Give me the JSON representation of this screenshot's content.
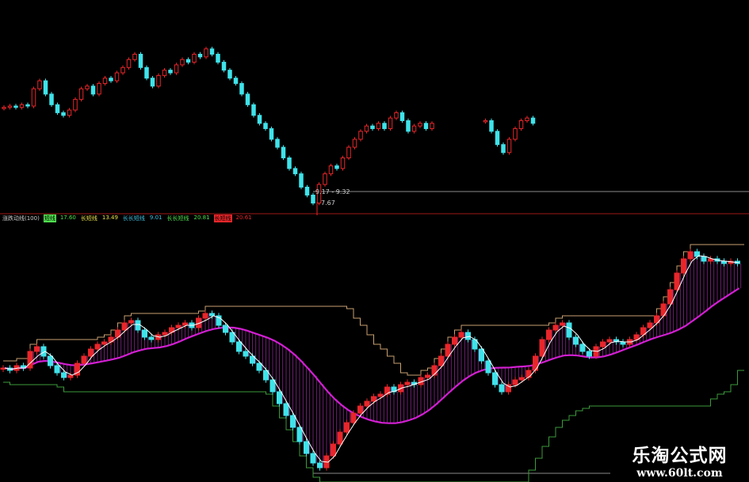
{
  "colors": {
    "up": "#e8262a",
    "down": "#3fe3ea",
    "ma_fast": "#ffffff",
    "ma_slow": "#d21fd2",
    "hatch": "#9b2fa0",
    "band_tan": "#c8a070",
    "band_green": "#3c9a3c",
    "ref_line": "#8a8a8a",
    "divider": "#a01818"
  },
  "price_panel": {
    "annotation_range": "9.17 - 9.32",
    "annotation_low": "7.67"
  },
  "indicator_legend": [
    {
      "label": "涨跌动线(100)",
      "color": "#cccccc"
    },
    {
      "label": "短线",
      "color": "#4fe04f",
      "highlight": true
    },
    {
      "label": "17.60",
      "color": "#4fe04f"
    },
    {
      "label": "长短线",
      "color": "#e8e04a"
    },
    {
      "label": "13.49",
      "color": "#e8e04a"
    },
    {
      "label": "长长短线",
      "color": "#3fc0e0"
    },
    {
      "label": "9.01",
      "color": "#3fc0e0"
    },
    {
      "label": "长长短线",
      "color": "#4fe04f"
    },
    {
      "label": "20.81",
      "color": "#4fe04f"
    },
    {
      "label": "长短线",
      "color": "#e8262a",
      "highlight": true
    },
    {
      "label": "20.61",
      "color": "#e8262a"
    }
  ],
  "watermark": {
    "name": "乐淘公式网",
    "url": "www.60lt.com"
  },
  "chart_data": [
    {
      "type": "candlestick",
      "panel": "price",
      "ylim": [
        7.5,
        14.2
      ],
      "closes": [
        11.5,
        11.55,
        11.5,
        11.6,
        11.55,
        12.2,
        12.5,
        12.0,
        11.6,
        11.3,
        11.2,
        11.4,
        11.8,
        12.2,
        12.3,
        12.0,
        12.4,
        12.6,
        12.5,
        12.8,
        13.0,
        13.3,
        13.5,
        13.0,
        12.6,
        12.3,
        12.7,
        12.9,
        12.8,
        13.1,
        13.3,
        13.2,
        13.5,
        13.4,
        13.7,
        13.5,
        13.2,
        12.9,
        12.6,
        12.4,
        12.0,
        11.6,
        11.2,
        10.9,
        10.7,
        10.3,
        10.0,
        9.6,
        9.2,
        9.0,
        8.5,
        8.2,
        7.9,
        8.6,
        9.0,
        9.3,
        9.2,
        9.6,
        10.0,
        10.3,
        10.6,
        10.8,
        10.7,
        10.9,
        10.7,
        11.1,
        11.3,
        11.0,
        10.6,
        10.8,
        10.9,
        10.7,
        10.9,
        null,
        null,
        null,
        null,
        null,
        null,
        null,
        null,
        11.0,
        10.6,
        10.1,
        9.8,
        10.3,
        10.7,
        11.0,
        11.1,
        10.9
      ]
    },
    {
      "type": "candlestick",
      "panel": "indicator",
      "ylim": [
        0,
        100
      ],
      "closes": [
        45,
        44,
        46,
        45,
        52,
        54,
        50,
        46,
        43,
        41,
        42,
        47,
        50,
        53,
        55,
        56,
        58,
        61,
        64,
        65,
        61,
        58,
        57,
        59,
        60,
        62,
        63,
        64,
        62,
        66,
        68,
        67,
        63,
        60,
        56,
        52,
        50,
        47,
        44,
        40,
        35,
        30,
        25,
        20,
        14,
        9,
        5,
        3,
        8,
        13,
        18,
        22,
        26,
        29,
        31,
        33,
        34,
        37,
        35,
        38,
        39,
        38,
        41,
        42,
        46,
        50,
        55,
        58,
        60,
        57,
        53,
        48,
        43,
        38,
        35,
        38,
        40,
        41,
        44,
        50,
        57,
        61,
        63,
        64,
        58,
        55,
        52,
        50,
        54,
        56,
        57,
        56,
        55,
        57,
        59,
        62,
        64,
        67,
        72,
        78,
        85,
        91,
        94,
        92,
        90,
        91,
        90,
        89,
        90,
        89
      ]
    }
  ]
}
